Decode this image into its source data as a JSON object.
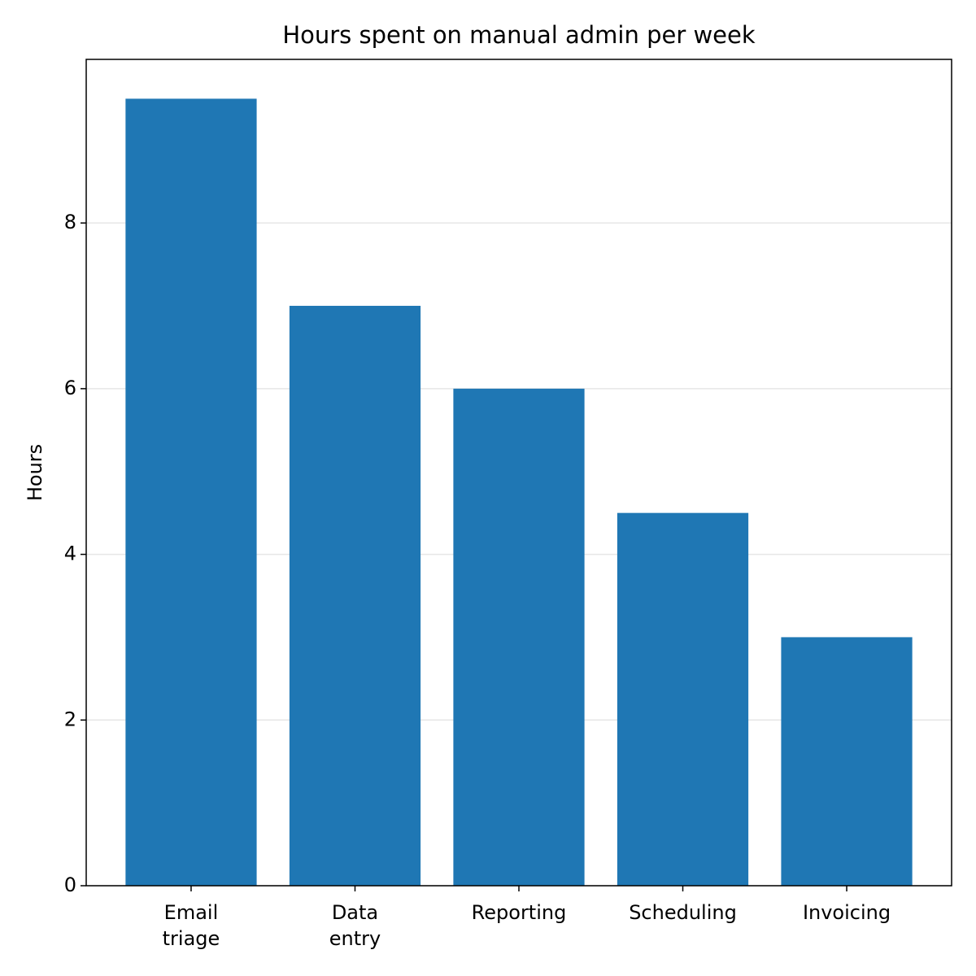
{
  "chart_data": {
    "type": "bar",
    "title": "Hours spent on manual admin per week",
    "y_label": "Hours",
    "categories": [
      "Email\ntriage",
      "Data\nentry",
      "Reporting",
      "Scheduling",
      "Invoicing"
    ],
    "values": [
      9.5,
      7,
      6,
      4.5,
      3
    ],
    "color": "#1f77b4",
    "ylim": [
      0,
      9.975
    ],
    "yticks": [
      0,
      2,
      4,
      6,
      8
    ],
    "grid": true
  }
}
